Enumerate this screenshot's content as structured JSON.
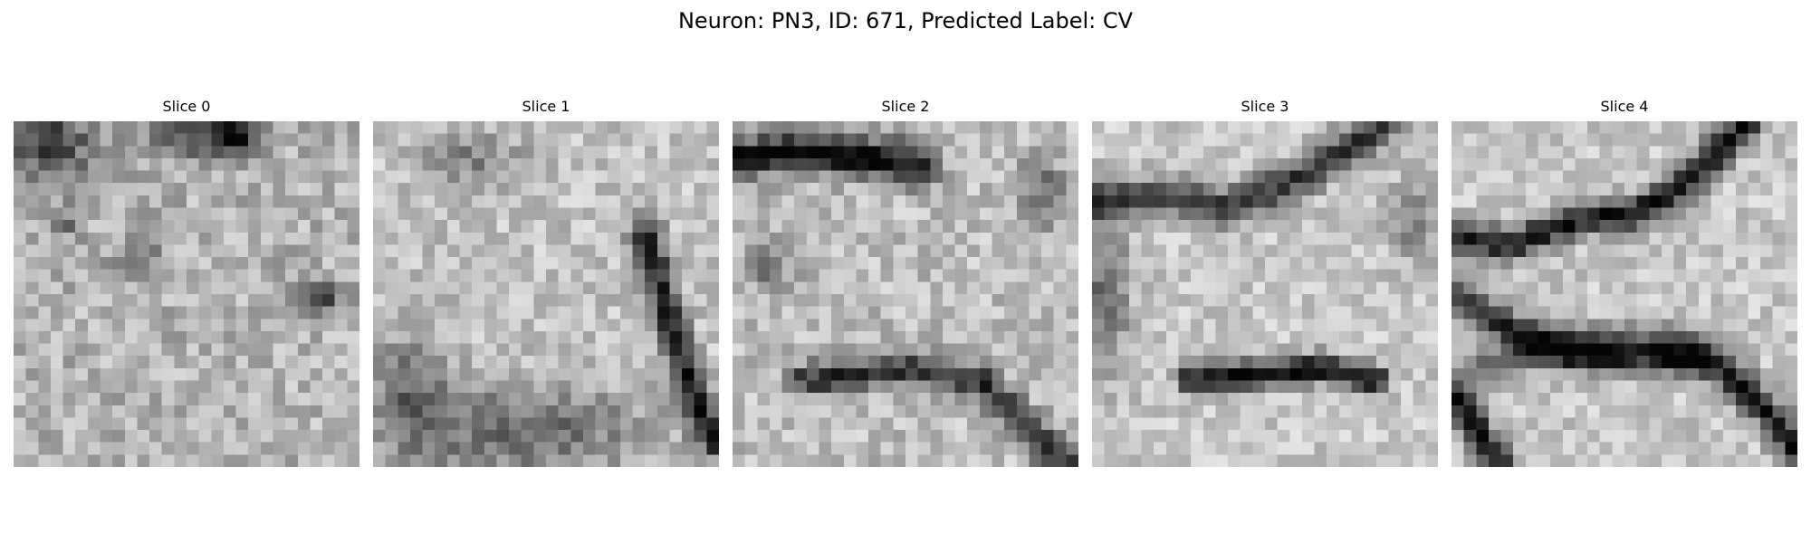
{
  "figure": {
    "title": "Neuron: PN3, ID: 671, Predicted Label: CV",
    "colormap": "grayscale",
    "grid_size": 28
  },
  "panels": [
    {
      "title": "Slice 0",
      "texture": "diffuse noise with dark patches at top-left and top-center and a dark spot at right"
    },
    {
      "title": "Slice 1",
      "texture": "bright upper area, darker band along bottom, dark curved membrane on right edge"
    },
    {
      "title": "Slice 2",
      "texture": "dark horizontal band at top, dark diagonal membrane in lower right"
    },
    {
      "title": "Slice 3",
      "texture": "dark arc across upper portion and dark horizontal band in lower middle"
    },
    {
      "title": "Slice 4",
      "texture": "dark arcs crossing upper area, dark curves at bottom left and bottom right"
    }
  ]
}
